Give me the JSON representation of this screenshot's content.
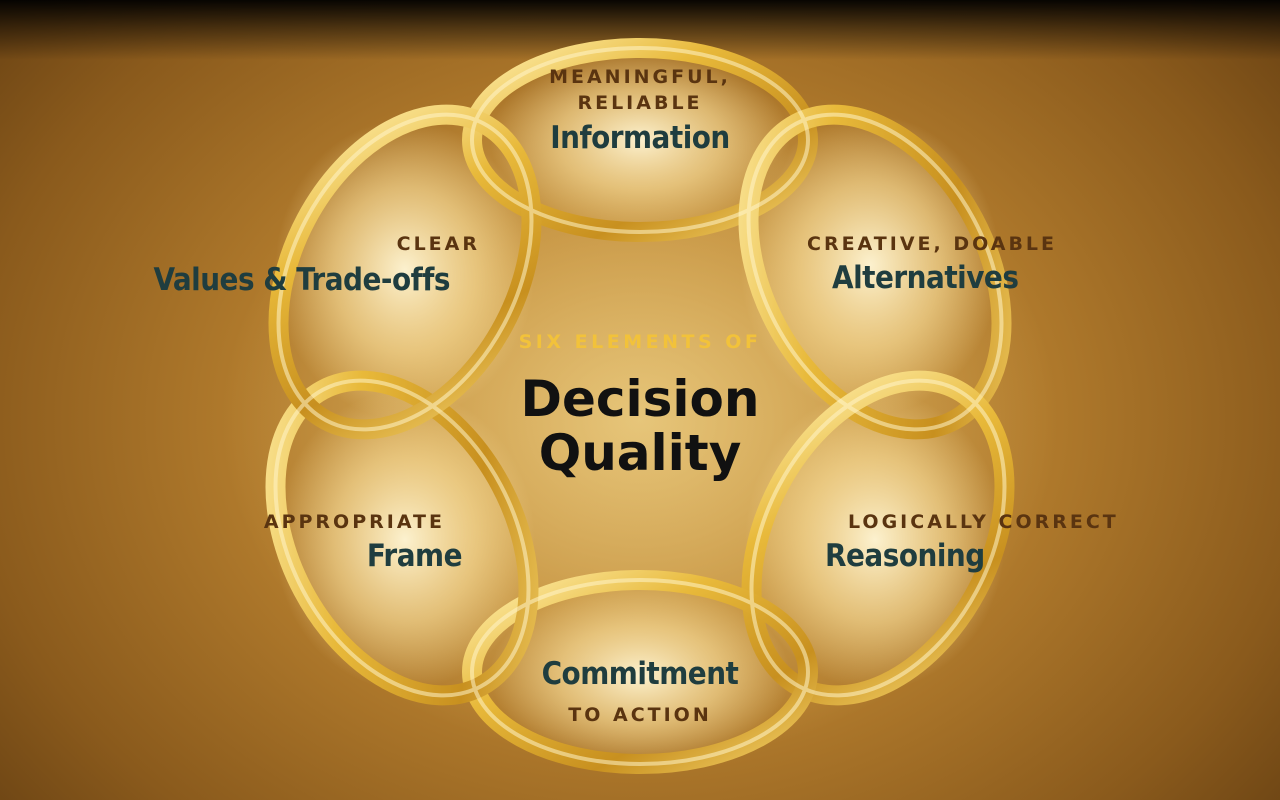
{
  "center": {
    "kicker": "SIX ELEMENTS OF",
    "title_line1": "Decision",
    "title_line2": "Quality"
  },
  "elements": [
    {
      "qualifier_line1": "MEANINGFUL,",
      "qualifier_line2": "RELIABLE",
      "name": "Information"
    },
    {
      "qualifier": "CREATIVE, DOABLE",
      "name": "Alternatives"
    },
    {
      "qualifier": "LOGICALLY CORRECT",
      "name": "Reasoning"
    },
    {
      "name": "Commitment",
      "qualifier": "TO ACTION"
    },
    {
      "qualifier": "APPROPRIATE",
      "name": "Frame"
    },
    {
      "qualifier": "CLEAR",
      "name": "Values & Trade-offs"
    }
  ],
  "colors": {
    "ring": "#e8b93a",
    "qualifier_text": "#5a3410",
    "element_text": "#1f3d3f",
    "center_kicker": "#f2c23a",
    "center_title": "#111111"
  }
}
